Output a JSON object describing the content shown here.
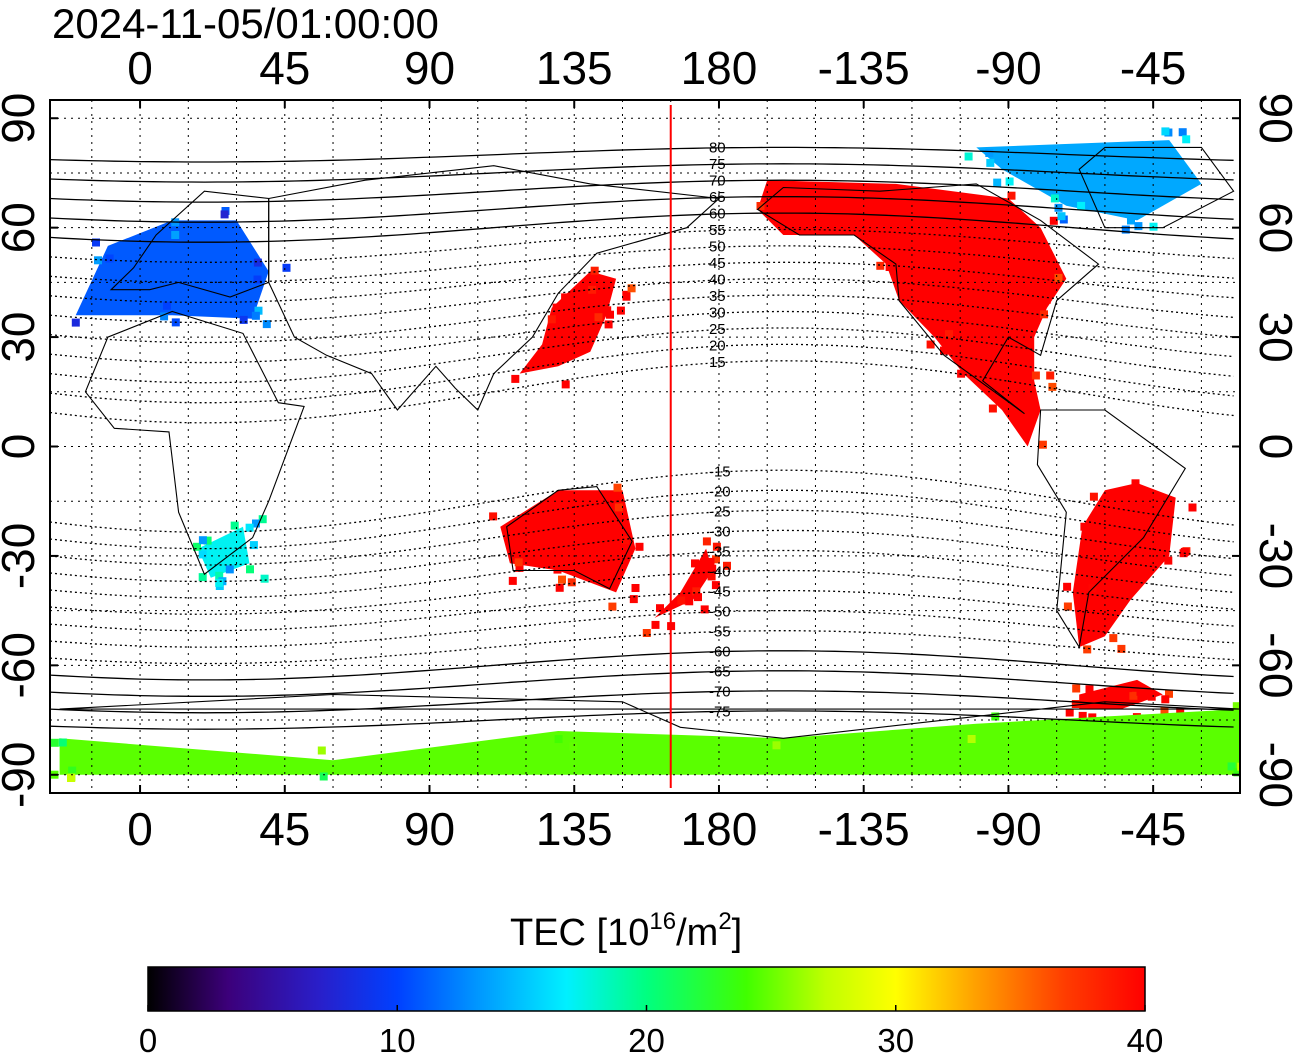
{
  "title": "2024-11-05/01:00:00",
  "map": {
    "lon_ticks": [
      "0",
      "45",
      "90",
      "135",
      "180",
      "-135",
      "-90",
      "-45"
    ],
    "lon_values": [
      0,
      45,
      90,
      135,
      180,
      225,
      270,
      315
    ],
    "lat_ticks": [
      "90",
      "60",
      "30",
      "0",
      "-30",
      "-60",
      "-90"
    ],
    "lat_values": [
      90,
      60,
      30,
      0,
      -30,
      -60,
      -90
    ],
    "lon_range_deg": [
      -28,
      342
    ],
    "lat_range_deg": [
      -95,
      95
    ],
    "grid": "dotted every 15 degrees",
    "marker_line_lon_deg": 165,
    "marker_line_color": "#ff0000",
    "magnetic_latitude_labels": [
      "80",
      "75",
      "70",
      "65",
      "60",
      "55",
      "50",
      "45",
      "40",
      "35",
      "30",
      "25",
      "20",
      "15",
      "-15",
      "-20",
      "-25",
      "-30",
      "-35",
      "-40",
      "-45",
      "-50",
      "-55",
      "-60",
      "-65",
      "-70",
      "-75"
    ],
    "magnetic_latitude_values": [
      80,
      75,
      70,
      65,
      60,
      55,
      50,
      45,
      40,
      35,
      30,
      25,
      20,
      15,
      -15,
      -20,
      -25,
      -30,
      -35,
      -40,
      -45,
      -50,
      -55,
      -60,
      -65,
      -70,
      -75
    ]
  },
  "colorbar": {
    "label_main": "TEC  [10",
    "label_sup1": "16",
    "label_mid": "/m",
    "label_sup2": "2",
    "label_end": "]",
    "tick_labels": [
      "0",
      "10",
      "20",
      "30",
      "40"
    ],
    "tick_values": [
      0,
      10,
      20,
      30,
      40
    ],
    "range": [
      0,
      40
    ],
    "colormap": [
      "#000000",
      "#3c007a",
      "#2a1ec8",
      "#0040ff",
      "#0096ff",
      "#00f0ff",
      "#00ff80",
      "#40ff00",
      "#c0ff00",
      "#ffff00",
      "#ffa000",
      "#ff3c00",
      "#ff0000"
    ]
  },
  "tec_regions": [
    {
      "name": "north-america",
      "tec": 40
    },
    {
      "name": "east-asia",
      "tec": 40
    },
    {
      "name": "new-zealand-pacific",
      "tec": 40
    },
    {
      "name": "south-america",
      "tec": 40
    },
    {
      "name": "australia",
      "tec": 40
    },
    {
      "name": "antarctic-peninsula",
      "tec": 40
    },
    {
      "name": "europe",
      "tec": 11
    },
    {
      "name": "greenland-arctic",
      "tec": 14
    },
    {
      "name": "southern-africa",
      "tec": 17
    },
    {
      "name": "antarctica",
      "tec": 24
    }
  ]
}
